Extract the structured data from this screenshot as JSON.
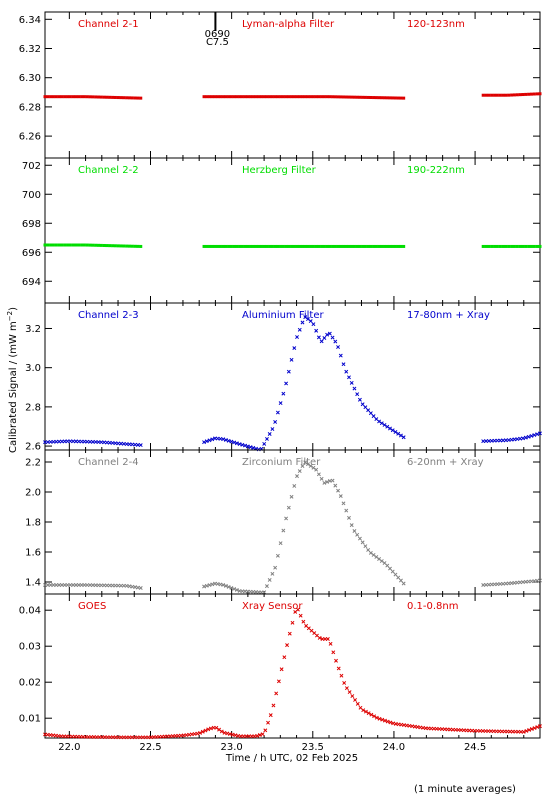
{
  "figure": {
    "ylabel": "Calibrated Signal / (mW m",
    "ylabel_sup": "−2",
    "ylabel_close": ")",
    "xlabel": "Time / h UTC, 02 Feb 2025",
    "footnote": "(1 minute averages)",
    "marker_label_1": "0690",
    "marker_label_2": "C7.5",
    "marker_x": 22.9
  },
  "chart_data": [
    {
      "type": "scatter",
      "channel": "Channel 2-1",
      "filter": "Lyman-alpha Filter",
      "band": "120-123nm",
      "color": "#dd0000",
      "marker": "square",
      "xlim": [
        21.85,
        24.9
      ],
      "ylim": [
        6.245,
        6.345
      ],
      "yticks": [
        6.26,
        6.28,
        6.3,
        6.32,
        6.34
      ],
      "ytick_labels": [
        "6.26",
        "6.28",
        "6.30",
        "6.32",
        "6.34"
      ],
      "segments": [
        {
          "x": [
            21.85,
            22.1,
            22.44
          ],
          "y": [
            6.287,
            6.287,
            6.286
          ]
        },
        {
          "x": [
            22.83,
            23.2,
            23.6,
            24.06
          ],
          "y": [
            6.287,
            6.287,
            6.287,
            6.286
          ]
        },
        {
          "x": [
            24.55,
            24.7,
            24.9
          ],
          "y": [
            6.288,
            6.288,
            6.289
          ]
        }
      ]
    },
    {
      "type": "scatter",
      "channel": "Channel 2-2",
      "filter": "Herzberg Filter",
      "band": "190-222nm",
      "color": "#00dd00",
      "marker": "square",
      "xlim": [
        21.85,
        24.9
      ],
      "ylim": [
        692.5,
        702.5
      ],
      "yticks": [
        694,
        696,
        698,
        700,
        702
      ],
      "ytick_labels": [
        "694",
        "696",
        "698",
        "700",
        "702"
      ],
      "segments": [
        {
          "x": [
            21.85,
            22.1,
            22.44
          ],
          "y": [
            696.5,
            696.5,
            696.4
          ]
        },
        {
          "x": [
            22.83,
            23.3,
            24.06
          ],
          "y": [
            696.4,
            696.4,
            696.4
          ]
        },
        {
          "x": [
            24.55,
            24.9
          ],
          "y": [
            696.4,
            696.4
          ]
        }
      ]
    },
    {
      "type": "scatter",
      "channel": "Channel 2-3",
      "filter": "Aluminium Filter",
      "band": "17-80nm + Xray",
      "color": "#0000cc",
      "marker": "x",
      "xlim": [
        21.85,
        24.9
      ],
      "ylim": [
        2.58,
        3.33
      ],
      "yticks": [
        2.6,
        2.8,
        3.0,
        3.2
      ],
      "ytick_labels": [
        "2.6",
        "2.8",
        "3.0",
        "3.2"
      ],
      "segments": [
        {
          "x": [
            21.85,
            22.0,
            22.2,
            22.44
          ],
          "y": [
            2.62,
            2.625,
            2.62,
            2.605
          ]
        },
        {
          "x": [
            22.83,
            22.9,
            22.95,
            23.05,
            23.18,
            23.26,
            23.33,
            23.4,
            23.45,
            23.5,
            23.55,
            23.6,
            23.65,
            23.7,
            23.8,
            23.9,
            24.06
          ],
          "y": [
            2.62,
            2.64,
            2.635,
            2.61,
            2.58,
            2.7,
            2.9,
            3.15,
            3.26,
            3.23,
            3.13,
            3.18,
            3.12,
            2.99,
            2.82,
            2.73,
            2.645
          ]
        },
        {
          "x": [
            24.55,
            24.7,
            24.8,
            24.9
          ],
          "y": [
            2.625,
            2.63,
            2.64,
            2.665
          ]
        }
      ]
    },
    {
      "type": "scatter",
      "channel": "Channel 2-4",
      "filter": "Zirconium Filter",
      "band": "6-20nm + Xray",
      "color": "#808080",
      "marker": "x",
      "xlim": [
        21.85,
        24.9
      ],
      "ylim": [
        1.32,
        2.28
      ],
      "yticks": [
        1.4,
        1.6,
        1.8,
        2.0,
        2.2
      ],
      "ytick_labels": [
        "1.4",
        "1.6",
        "1.8",
        "2.0",
        "2.2"
      ],
      "segments": [
        {
          "x": [
            21.85,
            22.1,
            22.35,
            22.44
          ],
          "y": [
            1.38,
            1.38,
            1.375,
            1.36
          ]
        },
        {
          "x": [
            22.83,
            22.9,
            22.95,
            23.05,
            23.2,
            23.27,
            23.33,
            23.4,
            23.45,
            23.52,
            23.57,
            23.62,
            23.67,
            23.75,
            23.85,
            23.95,
            24.06
          ],
          "y": [
            1.37,
            1.39,
            1.38,
            1.34,
            1.33,
            1.5,
            1.8,
            2.1,
            2.2,
            2.15,
            2.06,
            2.08,
            1.98,
            1.75,
            1.6,
            1.52,
            1.39
          ]
        },
        {
          "x": [
            24.55,
            24.7,
            24.9
          ],
          "y": [
            1.38,
            1.39,
            1.41
          ]
        }
      ]
    },
    {
      "type": "scatter",
      "channel": "GOES",
      "filter": "Xray Sensor",
      "band": "0.1-0.8nm",
      "color": "#dd0000",
      "marker": "x",
      "xlim": [
        21.85,
        24.9
      ],
      "ylim": [
        0.0045,
        0.0445
      ],
      "yticks": [
        0.01,
        0.02,
        0.03,
        0.04
      ],
      "ytick_labels": [
        "0.01",
        "0.02",
        "0.03",
        "0.04"
      ],
      "segments": [
        {
          "x": [
            21.85,
            21.95,
            22.1,
            22.3,
            22.5,
            22.7,
            22.8,
            22.86,
            22.9,
            22.95,
            23.05,
            23.15,
            23.2,
            23.25,
            23.3,
            23.35,
            23.4,
            23.45,
            23.5,
            23.55,
            23.6,
            23.65,
            23.7,
            23.8,
            23.9,
            24.0,
            24.2,
            24.5,
            24.8,
            24.9
          ],
          "y": [
            0.0055,
            0.005,
            0.0048,
            0.0047,
            0.0047,
            0.0052,
            0.0058,
            0.007,
            0.0075,
            0.006,
            0.005,
            0.005,
            0.0057,
            0.012,
            0.022,
            0.032,
            0.041,
            0.036,
            0.034,
            0.032,
            0.032,
            0.025,
            0.019,
            0.0125,
            0.01,
            0.0085,
            0.0072,
            0.0065,
            0.0062,
            0.0078
          ]
        }
      ]
    }
  ],
  "xaxis": {
    "ticks": [
      22.0,
      22.5,
      23.0,
      23.5,
      24.0,
      24.5
    ],
    "tick_labels": [
      "22.0",
      "22.5",
      "23.0",
      "23.5",
      "24.0",
      "24.5"
    ]
  }
}
